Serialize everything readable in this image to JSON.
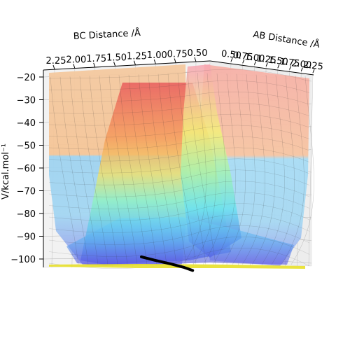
{
  "chart_data": {
    "type": "surface3d",
    "title": "",
    "axes": {
      "bc": {
        "label": "BC Distance /Å",
        "ticks": [
          "2.25",
          "2.00",
          "1.75",
          "1.50",
          "1.25",
          "1.00",
          "0.75",
          "0.50"
        ]
      },
      "ab": {
        "label": "AB Distance /Å",
        "ticks": [
          "0.50",
          "0.75",
          "1.00",
          "1.25",
          "1.50",
          "1.75",
          "2.00",
          "2.25"
        ]
      },
      "v": {
        "label": "V/kcal.mol⁻¹",
        "ticks": [
          "−20",
          "−30",
          "−40",
          "−50",
          "−60",
          "−70",
          "−80",
          "−90",
          "−100"
        ],
        "range": [
          -105,
          -20
        ]
      }
    },
    "colormap": "jet",
    "surface_alpha": 0.4,
    "grid": true,
    "trajectory": {
      "color": "#000000",
      "points": [
        {
          "bc": 0.75,
          "ab": 2.2,
          "v": -99
        },
        {
          "bc": 0.74,
          "ab": 1.9,
          "v": -100
        },
        {
          "bc": 0.74,
          "ab": 1.5,
          "v": -101
        },
        {
          "bc": 0.74,
          "ab": 1.2,
          "v": -102
        },
        {
          "bc": 0.74,
          "ab": 1.0,
          "v": -103
        }
      ]
    },
    "colors": {
      "high": "#ff6a6a",
      "upper_mid": "#f5b978",
      "mid": "#8fe8c8",
      "low": "#7fb8ea",
      "floor": "#6a60e0",
      "contour_floor": "#e8e02a"
    }
  }
}
